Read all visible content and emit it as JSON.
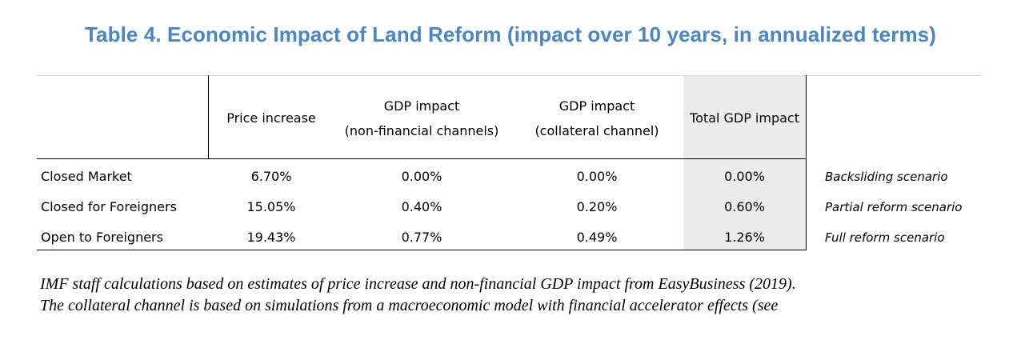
{
  "title": "Table 4. Economic Impact of Land Reform (impact over 10 years, in annualized terms)",
  "table": {
    "headers": {
      "price_increase": "Price increase",
      "gdp_nonfin_line1": "GDP impact",
      "gdp_nonfin_line2": "(non-financial channels)",
      "gdp_coll_line1": "GDP impact",
      "gdp_coll_line2": "(collateral channel)",
      "total": "Total GDP impact"
    },
    "rows": [
      {
        "label": "Closed Market",
        "price": "6.70%",
        "nonfin": "0.00%",
        "collateral": "0.00%",
        "total": "0.00%",
        "scenario": "Backsliding scenario"
      },
      {
        "label": "Closed for Foreigners",
        "price": "15.05%",
        "nonfin": "0.40%",
        "collateral": "0.20%",
        "total": "0.60%",
        "scenario": "Partial reform scenario"
      },
      {
        "label": "Open to Foreigners",
        "price": "19.43%",
        "nonfin": "0.77%",
        "collateral": "0.49%",
        "total": "1.26%",
        "scenario": "Full reform scenario"
      }
    ]
  },
  "footnote": {
    "line1": "IMF staff calculations based on estimates of price increase and non-financial GDP impact from EasyBusiness (2019).",
    "line2": "The collateral channel is based on simulations from a macroeconomic model with financial accelerator effects (see"
  },
  "colors": {
    "title": "#4a86c5",
    "shade": "#ececec"
  }
}
